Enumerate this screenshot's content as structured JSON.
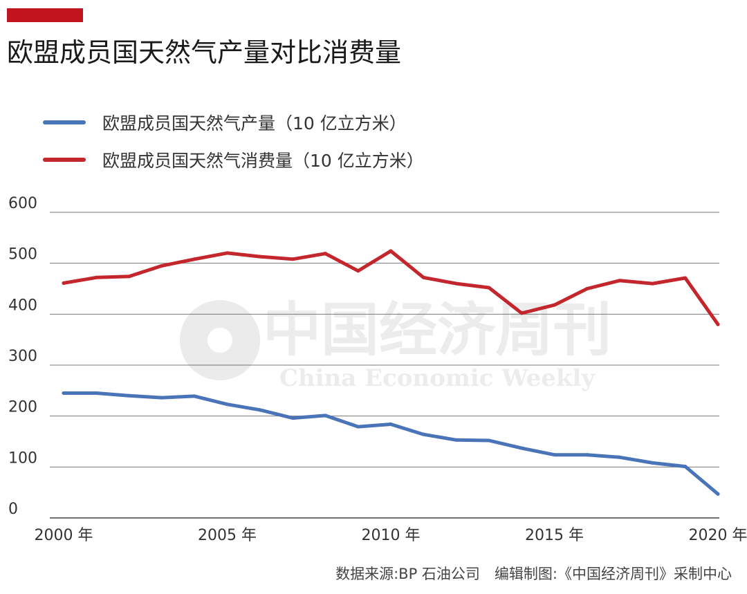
{
  "title": "欧盟成员国天然气产量对比消费量",
  "source": "数据来源:BP 石油公司　编辑制图:《中国经济周刊》采制中心",
  "watermark": {
    "cn": "中国经济周刊",
    "en": "China Economic Weekly"
  },
  "colors": {
    "accent": "#c0141e",
    "production": "#4a74b8",
    "consumption": "#c4262e",
    "grid": "#777777"
  },
  "chart_data": {
    "type": "line",
    "x": [
      2000,
      2001,
      2002,
      2003,
      2004,
      2005,
      2006,
      2007,
      2008,
      2009,
      2010,
      2011,
      2012,
      2013,
      2014,
      2015,
      2016,
      2017,
      2018,
      2019,
      2020
    ],
    "xticks": [
      2000,
      2005,
      2010,
      2015,
      2020
    ],
    "xtick_labels": [
      "2000 年",
      "2005 年",
      "2010 年",
      "2015 年",
      "2020 年"
    ],
    "ylim": [
      0,
      600
    ],
    "yticks": [
      0,
      100,
      200,
      300,
      400,
      500,
      600
    ],
    "ytick_labels": [
      "0",
      "100",
      "200",
      "300",
      "400",
      "500",
      "600"
    ],
    "grid": true,
    "legend": "top-left",
    "series": [
      {
        "name": "欧盟成员国天然气产量（10 亿立方米）",
        "color": "#4a74b8",
        "values": [
          245,
          245,
          240,
          236,
          239,
          223,
          212,
          196,
          201,
          179,
          184,
          164,
          153,
          152,
          137,
          124,
          124,
          119,
          108,
          101,
          47
        ]
      },
      {
        "name": "欧盟成员国天然气消费量（10 亿立方米）",
        "color": "#c4262e",
        "values": [
          461,
          472,
          474,
          495,
          508,
          520,
          513,
          508,
          519,
          485,
          524,
          472,
          460,
          452,
          402,
          418,
          450,
          466,
          460,
          471,
          380
        ]
      }
    ]
  }
}
